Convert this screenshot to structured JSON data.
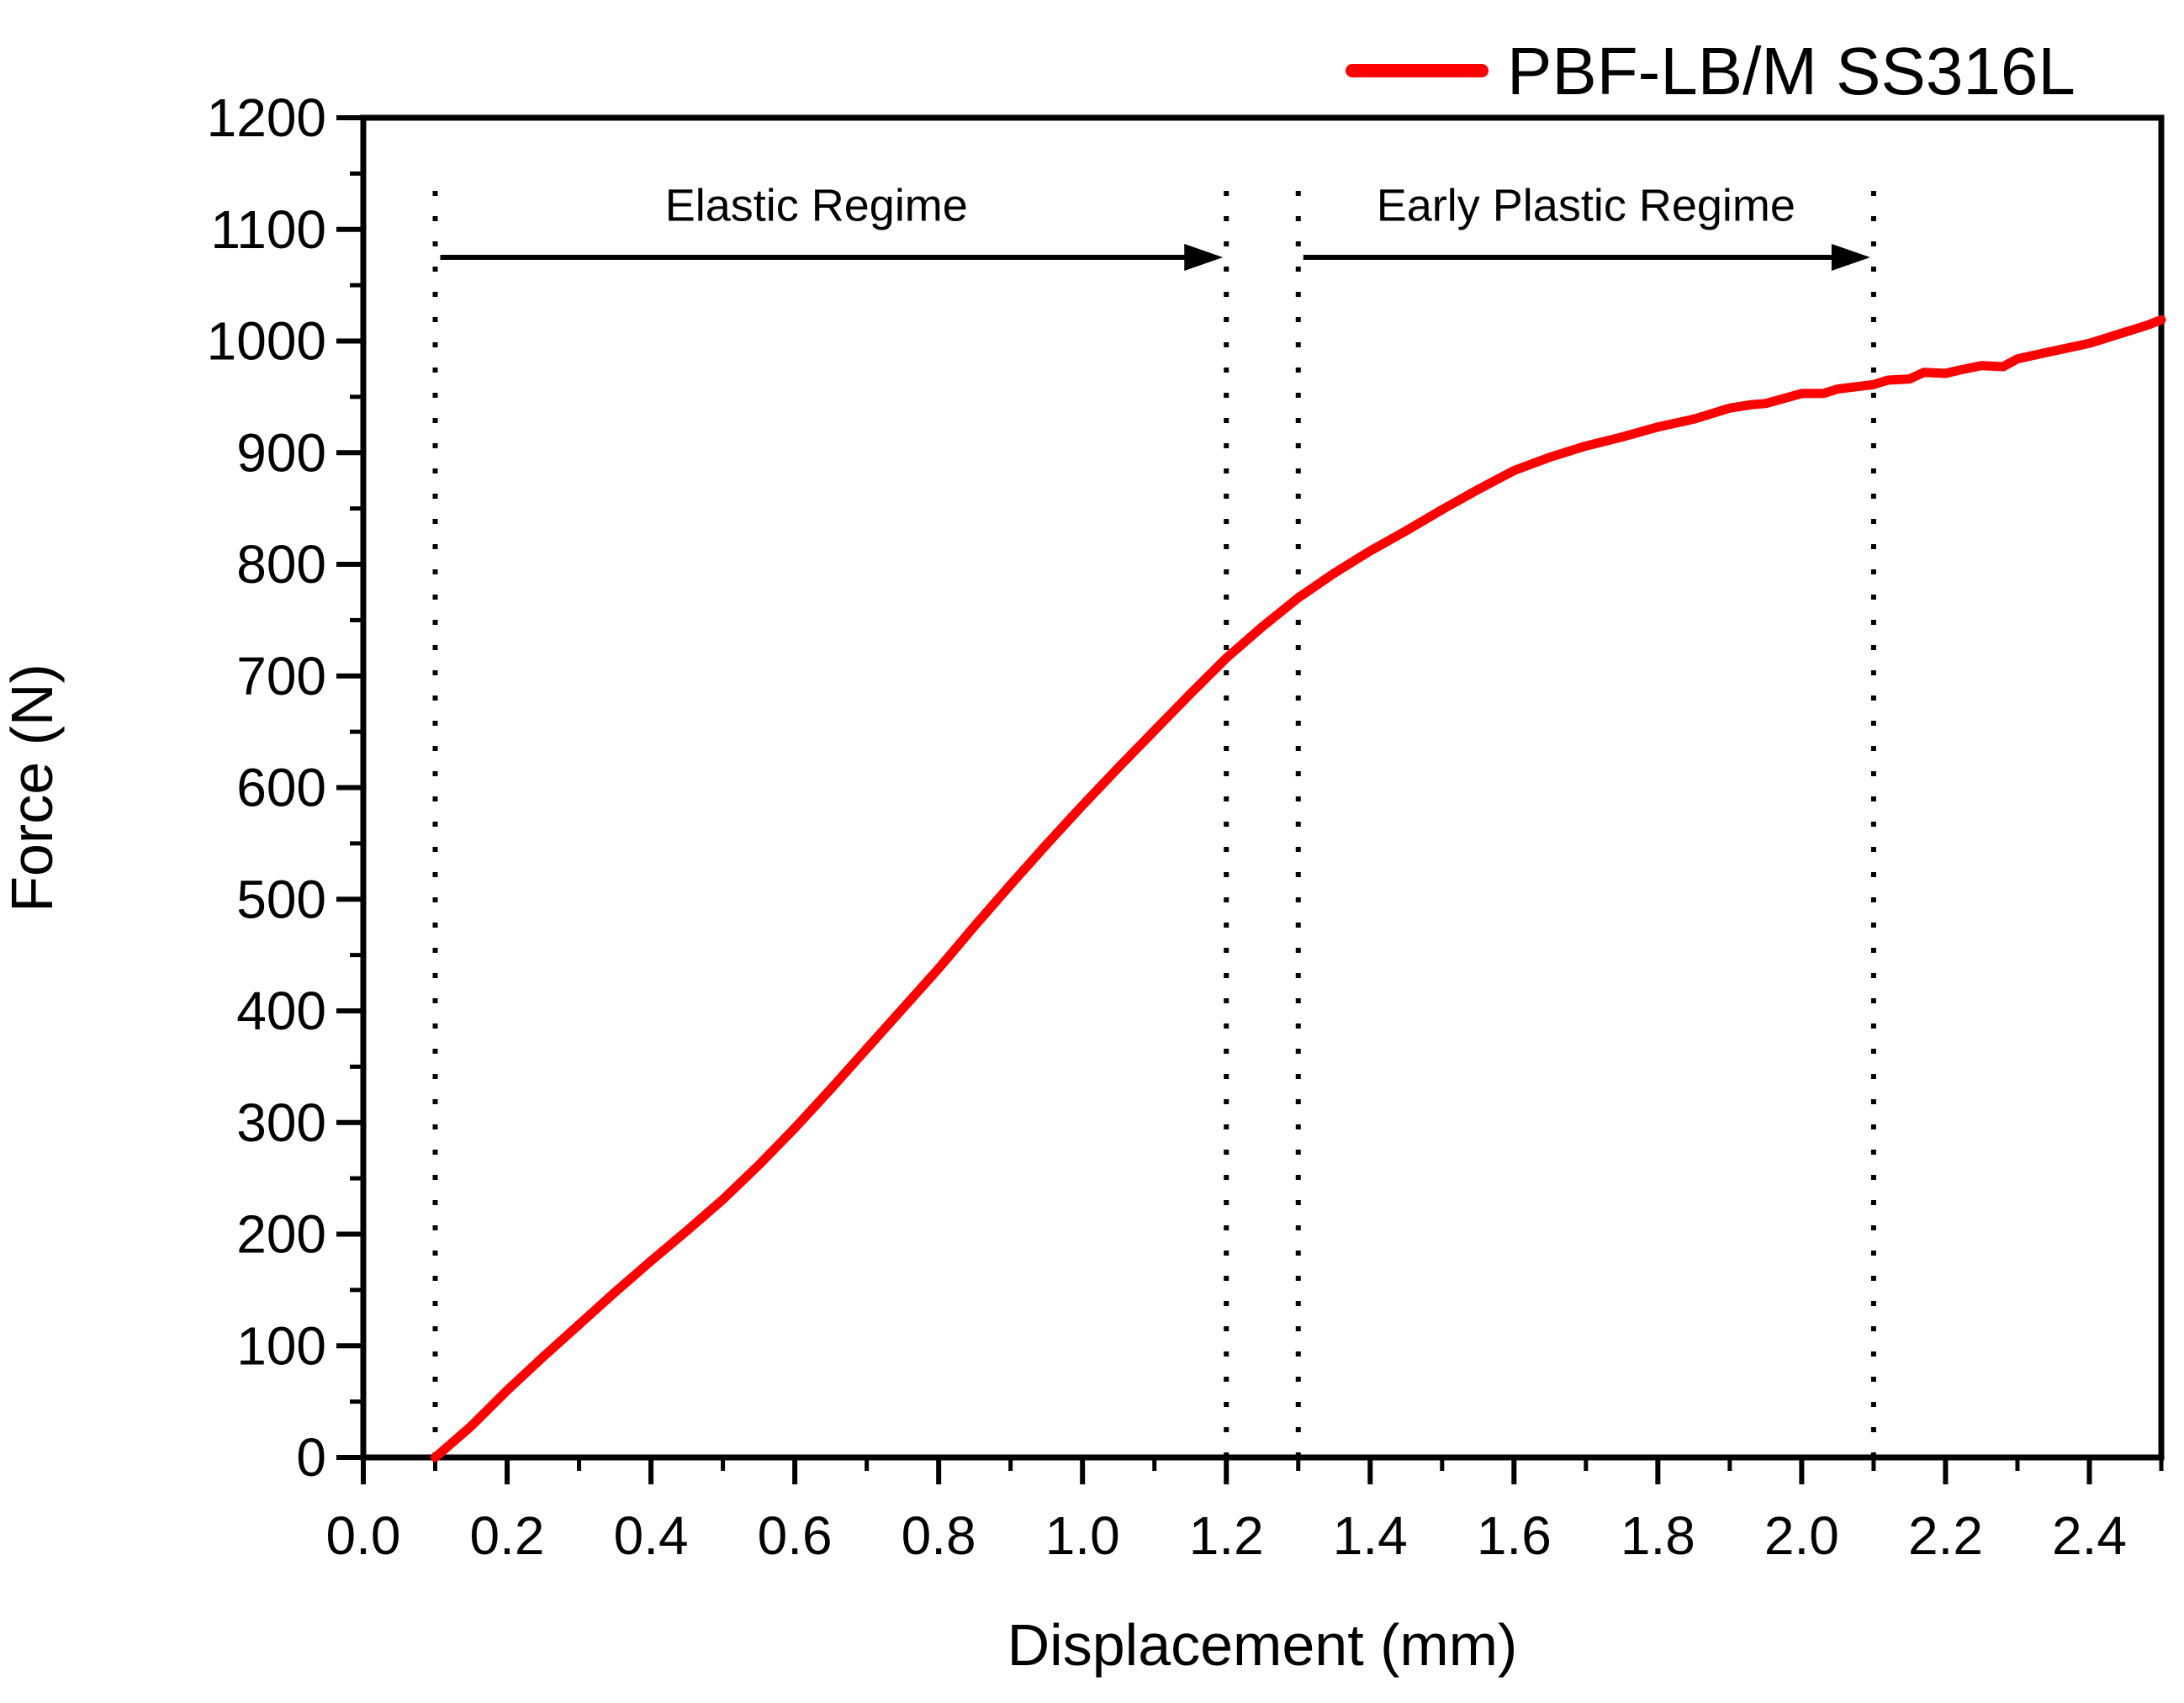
{
  "colors": {
    "curve": "#ff0000",
    "axis": "#000000",
    "background": "#ffffff",
    "annotation": "#000000"
  },
  "chart_data": {
    "type": "line",
    "title": "",
    "xlabel": "Displacement (mm)",
    "ylabel": "Force (N)",
    "xlim": [
      0.0,
      2.5
    ],
    "ylim": [
      0,
      1200
    ],
    "x_major_ticks": [
      0.0,
      0.2,
      0.4,
      0.6,
      0.8,
      1.0,
      1.2,
      1.4,
      1.6,
      1.8,
      2.0,
      2.2,
      2.4
    ],
    "x_major_tick_labels": [
      "0.0",
      "0.2",
      "0.4",
      "0.6",
      "0.8",
      "1.0",
      "1.2",
      "1.4",
      "1.6",
      "1.8",
      "2.0",
      "2.2",
      "2.4"
    ],
    "x_minor_ticks": [
      0.1,
      0.3,
      0.5,
      0.7,
      0.9,
      1.1,
      1.3,
      1.5,
      1.7,
      1.9,
      2.1,
      2.3,
      2.5
    ],
    "y_major_ticks": [
      0,
      100,
      200,
      300,
      400,
      500,
      600,
      700,
      800,
      900,
      1000,
      1100,
      1200
    ],
    "y_major_tick_labels": [
      "0",
      "100",
      "200",
      "300",
      "400",
      "500",
      "600",
      "700",
      "800",
      "900",
      "1000",
      "1100",
      "1200"
    ],
    "y_minor_ticks": [
      50,
      150,
      250,
      350,
      450,
      550,
      650,
      750,
      850,
      950,
      1050,
      1150
    ],
    "grid": false,
    "legend": {
      "position": "top-right",
      "label": "PBF-LB/M SS316L",
      "color": "#ff0000"
    },
    "series": [
      {
        "name": "PBF-LB/M SS316L",
        "color": "#ff0000",
        "points": [
          [
            0.1,
            0
          ],
          [
            0.15,
            28
          ],
          [
            0.2,
            60
          ],
          [
            0.25,
            90
          ],
          [
            0.3,
            119
          ],
          [
            0.35,
            148
          ],
          [
            0.4,
            176
          ],
          [
            0.45,
            203
          ],
          [
            0.5,
            231
          ],
          [
            0.55,
            262
          ],
          [
            0.6,
            295
          ],
          [
            0.65,
            330
          ],
          [
            0.7,
            366
          ],
          [
            0.75,
            402
          ],
          [
            0.8,
            438
          ],
          [
            0.85,
            476
          ],
          [
            0.9,
            513
          ],
          [
            0.95,
            549
          ],
          [
            1.0,
            584
          ],
          [
            1.05,
            618
          ],
          [
            1.1,
            651
          ],
          [
            1.15,
            684
          ],
          [
            1.2,
            716
          ],
          [
            1.25,
            744
          ],
          [
            1.3,
            770
          ],
          [
            1.35,
            792
          ],
          [
            1.4,
            812
          ],
          [
            1.45,
            830
          ],
          [
            1.5,
            849
          ],
          [
            1.55,
            867
          ],
          [
            1.6,
            884
          ],
          [
            1.65,
            896
          ],
          [
            1.7,
            906
          ],
          [
            1.75,
            914
          ],
          [
            1.8,
            923
          ],
          [
            1.85,
            930
          ],
          [
            1.9,
            940
          ],
          [
            1.93,
            943
          ],
          [
            1.95,
            944
          ],
          [
            2.0,
            953
          ],
          [
            2.03,
            953
          ],
          [
            2.05,
            957
          ],
          [
            2.1,
            961
          ],
          [
            2.12,
            965
          ],
          [
            2.15,
            966
          ],
          [
            2.17,
            972
          ],
          [
            2.2,
            971
          ],
          [
            2.22,
            974
          ],
          [
            2.25,
            978
          ],
          [
            2.28,
            977
          ],
          [
            2.3,
            984
          ],
          [
            2.35,
            991
          ],
          [
            2.4,
            998
          ],
          [
            2.43,
            1004
          ],
          [
            2.45,
            1008
          ],
          [
            2.48,
            1014
          ],
          [
            2.5,
            1019
          ]
        ]
      }
    ],
    "annotations": [
      {
        "label": "Elastic Regime",
        "x_start": 0.1,
        "x_end": 1.2,
        "arrow_y": 1075,
        "guide_top_y": 1148,
        "label_x": 0.63,
        "label_y": 1122
      },
      {
        "label": "Early Plastic Regime",
        "x_start": 1.3,
        "x_end": 2.1,
        "arrow_y": 1075,
        "guide_top_y": 1148,
        "label_x": 1.7,
        "label_y": 1122
      }
    ]
  }
}
